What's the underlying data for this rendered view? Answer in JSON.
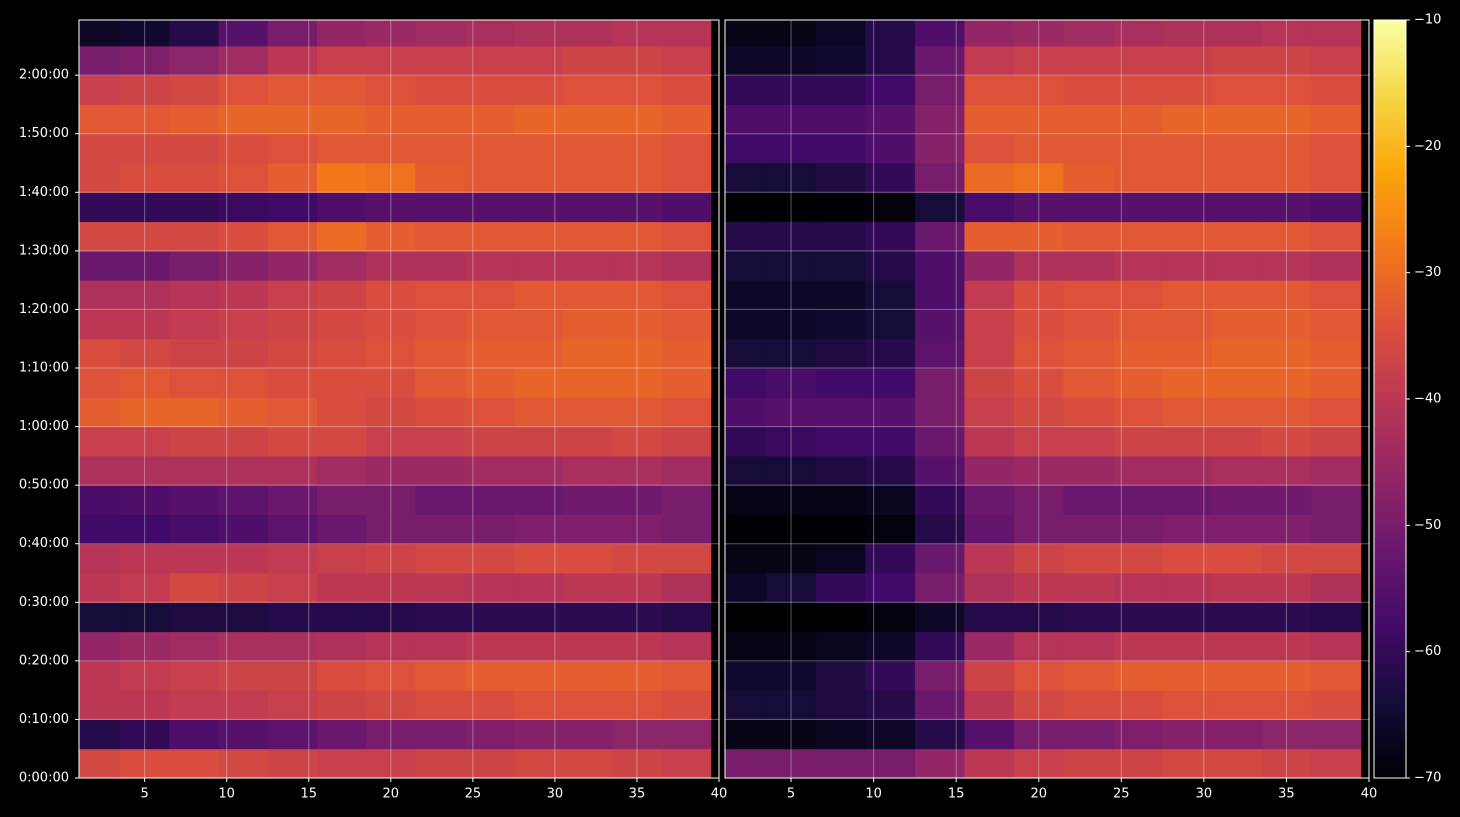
{
  "chart_data": {
    "type": "heatmap",
    "x": [
      2,
      5,
      8,
      11,
      14,
      17,
      20,
      23,
      26,
      29,
      32,
      35,
      38
    ],
    "y": [
      150,
      450,
      750,
      1050,
      1350,
      1650,
      1950,
      2250,
      2550,
      2850,
      3150,
      3450,
      3750,
      4050,
      4350,
      4650,
      4950,
      5250,
      5550,
      5850,
      6150,
      6450,
      6750,
      7050,
      7350,
      7650
    ],
    "xlim": [
      1,
      40
    ],
    "ylim": [
      0,
      7765
    ],
    "xticks": [
      5,
      10,
      15,
      20,
      25,
      30,
      35,
      40
    ],
    "yticks": [
      {
        "value": 0,
        "label": "0:00:00"
      },
      {
        "value": 600,
        "label": "0:10:00"
      },
      {
        "value": 1200,
        "label": "0:20:00"
      },
      {
        "value": 1800,
        "label": "0:30:00"
      },
      {
        "value": 2400,
        "label": "0:40:00"
      },
      {
        "value": 3000,
        "label": "0:50:00"
      },
      {
        "value": 3600,
        "label": "1:00:00"
      },
      {
        "value": 4200,
        "label": "1:10:00"
      },
      {
        "value": 4800,
        "label": "1:20:00"
      },
      {
        "value": 5400,
        "label": "1:30:00"
      },
      {
        "value": 6000,
        "label": "1:40:00"
      },
      {
        "value": 6600,
        "label": "1:50:00"
      },
      {
        "value": 7200,
        "label": "2:00:00"
      }
    ],
    "clim": [
      -70,
      -10
    ],
    "cticks": [
      {
        "value": -70,
        "label": "−70"
      },
      {
        "value": -60,
        "label": "−60"
      },
      {
        "value": -50,
        "label": "−50"
      },
      {
        "value": -40,
        "label": "−40"
      },
      {
        "value": -30,
        "label": "−30"
      },
      {
        "value": -20,
        "label": "−20"
      },
      {
        "value": -10,
        "label": "−10"
      }
    ],
    "grid": true,
    "panels": [
      {
        "z": [
          [
            -36,
            -35,
            -35,
            -36,
            -37,
            -38,
            -38,
            -37,
            -37,
            -36,
            -36,
            -37,
            -38
          ],
          [
            -62,
            -60,
            -56,
            -55,
            -54,
            -52,
            -50,
            -50,
            -49,
            -48,
            -48,
            -47,
            -47
          ],
          [
            -40,
            -40,
            -39,
            -39,
            -38,
            -37,
            -36,
            -35,
            -35,
            -34,
            -34,
            -34,
            -35
          ],
          [
            -40,
            -39,
            -38,
            -37,
            -37,
            -35,
            -34,
            -33,
            -32,
            -32,
            -32,
            -32,
            -33
          ],
          [
            -46,
            -45,
            -44,
            -43,
            -43,
            -42,
            -41,
            -41,
            -40,
            -40,
            -40,
            -40,
            -41
          ],
          [
            -64,
            -64,
            -63,
            -63,
            -62,
            -62,
            -62,
            -61,
            -61,
            -61,
            -61,
            -61,
            -62
          ],
          [
            -40,
            -39,
            -36,
            -37,
            -38,
            -40,
            -40,
            -40,
            -41,
            -41,
            -40,
            -40,
            -42
          ],
          [
            -41,
            -40,
            -40,
            -40,
            -39,
            -38,
            -37,
            -36,
            -36,
            -35,
            -35,
            -36,
            -36
          ],
          [
            -58,
            -58,
            -57,
            -56,
            -54,
            -52,
            -50,
            -50,
            -50,
            -49,
            -49,
            -49,
            -50
          ],
          [
            -57,
            -56,
            -55,
            -54,
            -52,
            -50,
            -50,
            -52,
            -52,
            -52,
            -51,
            -51,
            -50
          ],
          [
            -42,
            -42,
            -42,
            -42,
            -42,
            -44,
            -45,
            -45,
            -44,
            -44,
            -43,
            -43,
            -44
          ],
          [
            -38,
            -38,
            -37,
            -37,
            -36,
            -36,
            -38,
            -38,
            -37,
            -37,
            -37,
            -36,
            -37
          ],
          [
            -32,
            -31,
            -31,
            -32,
            -33,
            -35,
            -36,
            -35,
            -34,
            -33,
            -33,
            -33,
            -34
          ],
          [
            -34,
            -33,
            -34,
            -34,
            -35,
            -35,
            -35,
            -33,
            -32,
            -31,
            -31,
            -31,
            -32
          ],
          [
            -35,
            -36,
            -37,
            -37,
            -36,
            -35,
            -34,
            -33,
            -32,
            -32,
            -31,
            -31,
            -32
          ],
          [
            -40,
            -40,
            -39,
            -38,
            -37,
            -36,
            -35,
            -34,
            -33,
            -33,
            -32,
            -32,
            -33
          ],
          [
            -42,
            -42,
            -41,
            -40,
            -38,
            -37,
            -35,
            -34,
            -34,
            -33,
            -33,
            -33,
            -34
          ],
          [
            -52,
            -52,
            -50,
            -48,
            -46,
            -44,
            -42,
            -42,
            -41,
            -41,
            -41,
            -41,
            -42
          ],
          [
            -36,
            -36,
            -36,
            -35,
            -33,
            -30,
            -32,
            -33,
            -33,
            -33,
            -33,
            -33,
            -34
          ],
          [
            -60,
            -60,
            -60,
            -59,
            -58,
            -56,
            -55,
            -55,
            -55,
            -55,
            -55,
            -55,
            -56
          ],
          [
            -36,
            -35,
            -35,
            -34,
            -32,
            -28,
            -29,
            -32,
            -33,
            -33,
            -33,
            -33,
            -34
          ],
          [
            -36,
            -36,
            -36,
            -35,
            -34,
            -33,
            -33,
            -33,
            -33,
            -33,
            -33,
            -33,
            -34
          ],
          [
            -33,
            -33,
            -32,
            -31,
            -31,
            -31,
            -32,
            -32,
            -32,
            -31,
            -31,
            -31,
            -32
          ],
          [
            -38,
            -37,
            -36,
            -34,
            -33,
            -33,
            -34,
            -35,
            -35,
            -35,
            -34,
            -34,
            -35
          ],
          [
            -50,
            -49,
            -47,
            -44,
            -40,
            -38,
            -38,
            -38,
            -38,
            -38,
            -37,
            -37,
            -38
          ],
          [
            -66,
            -65,
            -62,
            -55,
            -50,
            -46,
            -45,
            -44,
            -43,
            -42,
            -42,
            -41,
            -41
          ]
        ]
      },
      {
        "z": [
          [
            -50,
            -50,
            -50,
            -50,
            -46,
            -40,
            -38,
            -37,
            -37,
            -36,
            -36,
            -37,
            -38
          ],
          [
            -68,
            -68,
            -67,
            -66,
            -62,
            -55,
            -50,
            -50,
            -49,
            -48,
            -48,
            -47,
            -47
          ],
          [
            -64,
            -64,
            -63,
            -62,
            -52,
            -40,
            -36,
            -35,
            -35,
            -34,
            -34,
            -34,
            -35
          ],
          [
            -65,
            -65,
            -63,
            -60,
            -50,
            -37,
            -34,
            -33,
            -32,
            -32,
            -32,
            -32,
            -33
          ],
          [
            -68,
            -68,
            -67,
            -66,
            -60,
            -45,
            -41,
            -41,
            -40,
            -40,
            -40,
            -40,
            -41
          ],
          [
            -70,
            -70,
            -70,
            -69,
            -66,
            -62,
            -62,
            -61,
            -61,
            -61,
            -61,
            -61,
            -62
          ],
          [
            -66,
            -64,
            -60,
            -58,
            -50,
            -42,
            -40,
            -40,
            -41,
            -41,
            -40,
            -40,
            -42
          ],
          [
            -68,
            -68,
            -67,
            -60,
            -52,
            -40,
            -37,
            -36,
            -36,
            -35,
            -35,
            -36,
            -36
          ],
          [
            -70,
            -70,
            -70,
            -69,
            -62,
            -53,
            -50,
            -50,
            -50,
            -49,
            -49,
            -49,
            -50
          ],
          [
            -68,
            -68,
            -68,
            -67,
            -60,
            -52,
            -50,
            -52,
            -52,
            -52,
            -51,
            -51,
            -50
          ],
          [
            -64,
            -64,
            -63,
            -62,
            -55,
            -46,
            -45,
            -45,
            -44,
            -44,
            -43,
            -43,
            -44
          ],
          [
            -60,
            -59,
            -58,
            -58,
            -52,
            -40,
            -38,
            -38,
            -37,
            -37,
            -37,
            -36,
            -37
          ],
          [
            -56,
            -55,
            -55,
            -55,
            -50,
            -38,
            -36,
            -35,
            -34,
            -33,
            -33,
            -33,
            -34
          ],
          [
            -58,
            -57,
            -58,
            -58,
            -50,
            -37,
            -35,
            -33,
            -32,
            -31,
            -31,
            -31,
            -32
          ],
          [
            -64,
            -64,
            -63,
            -62,
            -54,
            -38,
            -34,
            -33,
            -32,
            -32,
            -31,
            -31,
            -32
          ],
          [
            -66,
            -66,
            -65,
            -64,
            -55,
            -38,
            -35,
            -34,
            -33,
            -33,
            -32,
            -32,
            -33
          ],
          [
            -66,
            -66,
            -66,
            -64,
            -56,
            -39,
            -35,
            -34,
            -34,
            -33,
            -33,
            -33,
            -34
          ],
          [
            -64,
            -64,
            -64,
            -62,
            -56,
            -46,
            -42,
            -42,
            -41,
            -41,
            -41,
            -41,
            -42
          ],
          [
            -62,
            -62,
            -62,
            -60,
            -52,
            -32,
            -32,
            -33,
            -33,
            -33,
            -33,
            -33,
            -34
          ],
          [
            -70,
            -70,
            -70,
            -69,
            -64,
            -57,
            -55,
            -55,
            -55,
            -55,
            -55,
            -55,
            -56
          ],
          [
            -64,
            -64,
            -63,
            -60,
            -50,
            -30,
            -29,
            -32,
            -33,
            -33,
            -33,
            -33,
            -34
          ],
          [
            -58,
            -58,
            -58,
            -56,
            -48,
            -34,
            -33,
            -33,
            -33,
            -33,
            -33,
            -33,
            -34
          ],
          [
            -56,
            -56,
            -56,
            -55,
            -48,
            -32,
            -32,
            -32,
            -32,
            -31,
            -31,
            -31,
            -32
          ],
          [
            -60,
            -60,
            -60,
            -58,
            -50,
            -34,
            -34,
            -35,
            -35,
            -35,
            -34,
            -34,
            -35
          ],
          [
            -66,
            -66,
            -65,
            -62,
            -52,
            -39,
            -38,
            -38,
            -38,
            -38,
            -37,
            -37,
            -38
          ],
          [
            -68,
            -68,
            -66,
            -62,
            -56,
            -46,
            -45,
            -44,
            -43,
            -42,
            -42,
            -41,
            -41
          ]
        ]
      }
    ]
  }
}
